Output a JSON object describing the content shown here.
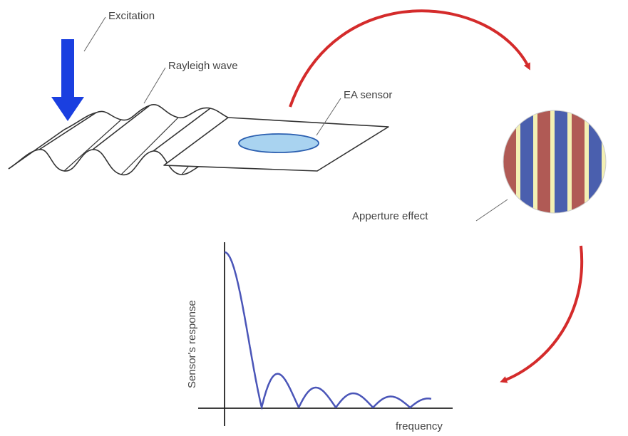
{
  "labels": {
    "excitation": "Excitation",
    "rayleigh_wave": "Rayleigh wave",
    "ea_sensor": "EA sensor",
    "aperture_effect": "Apperture effect",
    "y_axis": "Sensor's response",
    "x_axis": "frequency"
  },
  "icons": {
    "excitation": "down-arrow-icon",
    "transition_top": "curved-arrow-icon",
    "transition_bottom": "curved-arrow-icon"
  },
  "colors": {
    "excitation_arrow": "#1a3fe0",
    "flow_arrow": "#d42b2b",
    "sensor_fill": "#a9d3f0",
    "sensor_stroke": "#2b5fb0",
    "stripe_red": "#b05a55",
    "stripe_blue": "#4a5fae",
    "stripe_yellow": "#f3f0b4",
    "response_curve": "#4a55b8"
  },
  "aperture_stripes": [
    "red",
    "yellow",
    "blue",
    "yellow",
    "red",
    "yellow",
    "blue",
    "yellow",
    "red",
    "yellow",
    "blue",
    "yellow",
    "red"
  ],
  "chart_data": {
    "type": "line",
    "title": "",
    "xlabel": "frequency",
    "ylabel": "Sensor's response",
    "series": [
      {
        "function": "|sin(x)/x|",
        "lobe_peaks": [
          1.0,
          0.42,
          0.26,
          0.18,
          0.1,
          0.05
        ]
      }
    ],
    "grid": false
  }
}
